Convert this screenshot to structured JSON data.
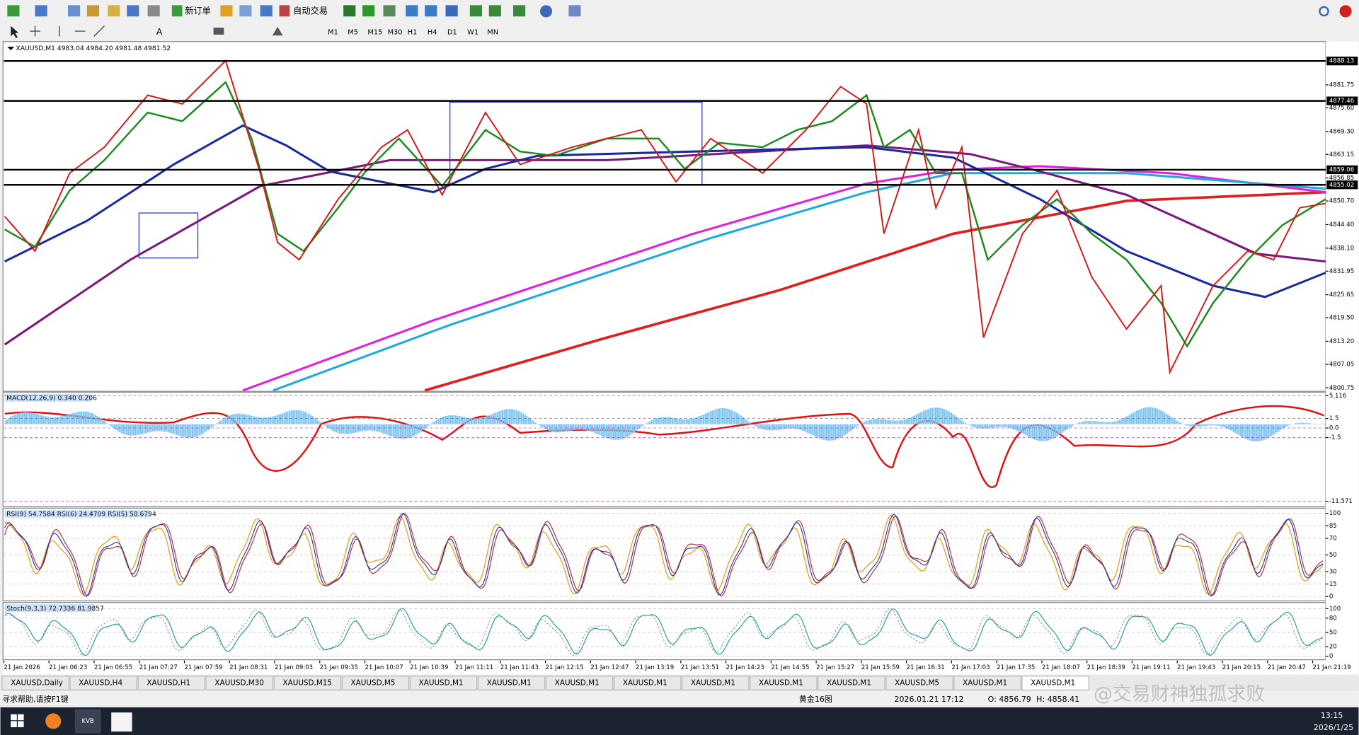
{
  "toolbar": {
    "new_order": "新订单",
    "auto_trading": "自动交易",
    "periods": [
      "M1",
      "M5",
      "M15",
      "M30",
      "H1",
      "H4",
      "D1",
      "W1",
      "MN"
    ]
  },
  "main_chart": {
    "header": "XAUUSD,M1  4983.04 4984.20 4981.48 4981.52",
    "yticks": [
      4881.75,
      {
        "value": 4875.6,
        "label": "4875.60"
      },
      {
        "value": 4869.3,
        "label": "4869.30"
      },
      4863.15,
      4856.85,
      {
        "value": 4850.7,
        "label": "4850.70"
      },
      {
        "value": 4844.4,
        "label": "4844.40"
      },
      {
        "value": 4838.1,
        "label": "4838.10"
      },
      4831.95,
      4825.65,
      {
        "value": 4819.5,
        "label": "4819.50"
      },
      {
        "value": 4813.2,
        "label": "4813.20"
      },
      4807.05,
      4800.75
    ],
    "levels": [
      4888.13,
      4877.46,
      4859.06,
      4855.02
    ]
  },
  "macd": {
    "header": "MACD(12,26,9) 0.340 0.206",
    "yticks": [
      5.116,
      1.5,
      {
        "value": 0,
        "label": "0.0"
      },
      -1.5,
      -11.571
    ]
  },
  "rsi": {
    "header": "RSI(9) 54.7584  RSI(6) 24.4709  RSI(5) 58.6794",
    "yticks": [
      100,
      85,
      70,
      50,
      30,
      15,
      0
    ]
  },
  "stoch": {
    "header": "Stoch(9,3,3) 72.7336 81.9857",
    "yticks": [
      100,
      80,
      50,
      20,
      0
    ]
  },
  "time_axis": [
    "21 Jan 2026",
    "21 Jan 06:23",
    "21 Jan 06:55",
    "21 Jan 07:27",
    "21 Jan 07:59",
    "21 Jan 08:31",
    "21 Jan 09:03",
    "21 Jan 09:35",
    "21 Jan 10:07",
    "21 Jan 10:39",
    "21 Jan 11:11",
    "21 Jan 11:43",
    "21 Jan 12:15",
    "21 Jan 12:47",
    "21 Jan 13:19",
    "21 Jan 13:51",
    "21 Jan 14:23",
    "21 Jan 14:55",
    "21 Jan 15:27",
    "21 Jan 15:59",
    "21 Jan 16:31",
    "21 Jan 17:03",
    "21 Jan 17:35",
    "21 Jan 18:07",
    "21 Jan 18:39",
    "21 Jan 19:11",
    "21 Jan 19:43",
    "21 Jan 20:15",
    "21 Jan 20:47",
    "21 Jan 21:19"
  ],
  "tabs": [
    "XAUUSD,Daily",
    "XAUUSD,H4",
    "XAUUSD,H1",
    "XAUUSD,M30",
    "XAUUSD,M15",
    "XAUUSD,M5",
    "XAUUSD,M1",
    "XAUUSD,M1",
    "XAUUSD,M1",
    "XAUUSD,M1",
    "XAUUSD,M1",
    "XAUUSD,M1",
    "XAUUSD,M1",
    "XAUUSD,M5",
    "XAUUSD,M1",
    "XAUUSD,M1"
  ],
  "status": {
    "help": "寻求帮助,请按F1键",
    "profile": "黄金16图",
    "datetime": "2026.01.21 17:12",
    "open": "O: 4856.79",
    "high": "H: 4858.41",
    "watermark": "@交易财神独孤求败"
  },
  "taskbar": {
    "app": "KVB",
    "time": "13:15",
    "date": "2026/1/25"
  }
}
